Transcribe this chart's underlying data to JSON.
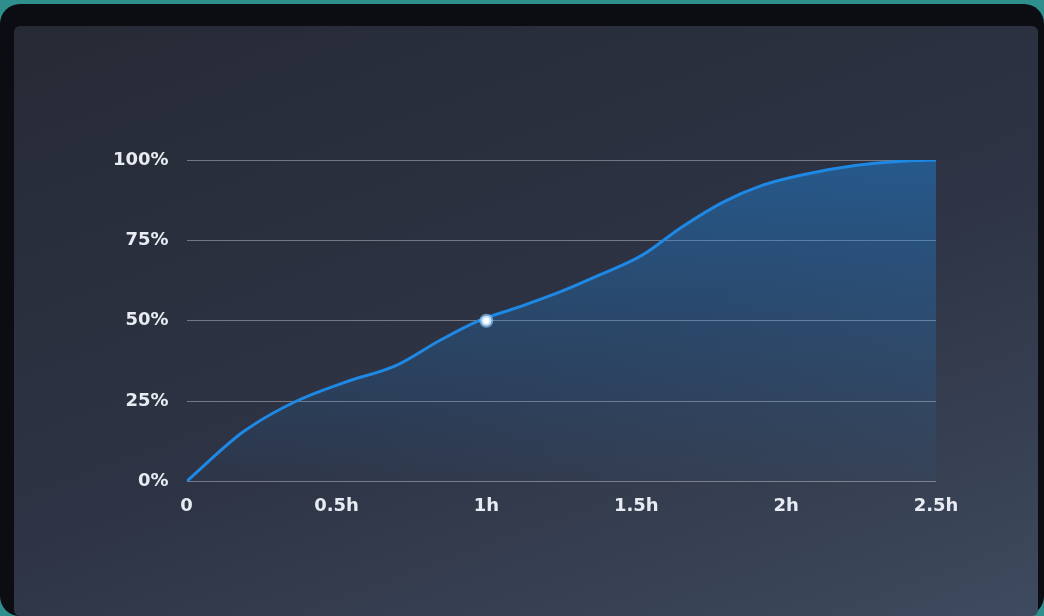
{
  "chart_data": {
    "type": "area",
    "series": [
      {
        "color": "#1e88e5",
        "x": [
          0,
          0.19,
          0.36,
          0.53,
          0.7,
          0.84,
          0.97,
          1.11,
          1.25,
          1.38,
          1.52,
          1.65,
          1.79,
          1.92,
          2.06,
          2.23,
          2.4,
          2.5
        ],
        "values": [
          0,
          15.5,
          24.7,
          30.9,
          36.1,
          43.6,
          49.8,
          54.3,
          59.1,
          64.3,
          70.4,
          79,
          86.9,
          92.1,
          95.5,
          98.3,
          99.7,
          100
        ]
      },
      {
        "type": "scatter",
        "color": "#ffffff",
        "x": [
          1
        ],
        "values": [
          50
        ],
        "marker": "circle"
      }
    ],
    "xlim": [
      0,
      2.5
    ],
    "xticks": [
      0,
      {
        "value": 0.5,
        "label": "0.5h"
      },
      {
        "value": 1,
        "label": "1h"
      },
      {
        "value": 1.5,
        "label": "1.5h"
      },
      {
        "value": 2,
        "label": "2h"
      },
      {
        "value": 2.5,
        "label": "2.5h"
      }
    ],
    "ylim": [
      0,
      100
    ],
    "yticks": [
      {
        "value": 0,
        "label": "0%"
      },
      {
        "value": 25,
        "label": "25%"
      },
      {
        "value": 50,
        "label": "50%"
      },
      {
        "value": 75,
        "label": "75%"
      },
      {
        "value": 100,
        "label": "100%"
      }
    ],
    "grid": "y",
    "legend": false
  }
}
